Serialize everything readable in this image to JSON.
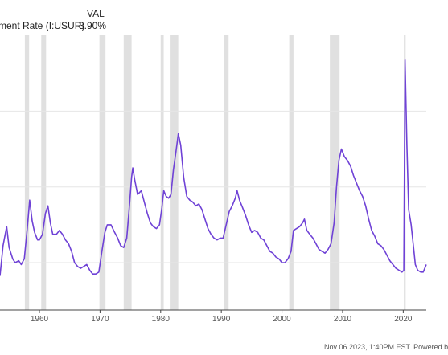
{
  "legend": {
    "val_header": "VAL",
    "series_label": "ment Rate (I:USUR)",
    "value": "3.90%"
  },
  "footer": {
    "text": "Nov 06 2023, 1:40PM EST. Powered b"
  },
  "colors": {
    "line": "#6f42d6",
    "recession": "#e0e0e0",
    "grid": "#e6e6e6",
    "axis": "#444444"
  },
  "chart_data": {
    "type": "line",
    "title": "",
    "xlabel": "",
    "ylabel": "",
    "x_ticks": [
      "1960",
      "1970",
      "1980",
      "1990",
      "2000",
      "2010",
      "2020"
    ],
    "xlim": [
      1953.5,
      2023.8
    ],
    "ylim": [
      1.5,
      16.0
    ],
    "grid": "horizontal",
    "recessions": [
      [
        1957.6,
        1958.3
      ],
      [
        1960.3,
        1961.1
      ],
      [
        1969.9,
        1970.9
      ],
      [
        1973.9,
        1975.2
      ],
      [
        1980.0,
        1980.5
      ],
      [
        1981.5,
        1982.9
      ],
      [
        1990.5,
        1991.2
      ],
      [
        2001.2,
        2001.9
      ],
      [
        2007.9,
        2009.5
      ],
      [
        2020.1,
        2020.4
      ]
    ],
    "series": [
      {
        "name": "",
        "points": [
          [
            1953.5,
            3.3
          ],
          [
            1954.0,
            4.9
          ],
          [
            1954.6,
            5.9
          ],
          [
            1955.0,
            4.8
          ],
          [
            1955.6,
            4.2
          ],
          [
            1956.0,
            4.0
          ],
          [
            1956.6,
            4.1
          ],
          [
            1957.0,
            3.9
          ],
          [
            1957.5,
            4.2
          ],
          [
            1958.0,
            5.8
          ],
          [
            1958.4,
            7.3
          ],
          [
            1958.8,
            6.2
          ],
          [
            1959.2,
            5.6
          ],
          [
            1959.7,
            5.2
          ],
          [
            1960.0,
            5.2
          ],
          [
            1960.5,
            5.5
          ],
          [
            1961.0,
            6.6
          ],
          [
            1961.4,
            7.0
          ],
          [
            1961.8,
            6.1
          ],
          [
            1962.2,
            5.5
          ],
          [
            1962.8,
            5.5
          ],
          [
            1963.3,
            5.7
          ],
          [
            1963.8,
            5.5
          ],
          [
            1964.3,
            5.2
          ],
          [
            1964.8,
            5.0
          ],
          [
            1965.3,
            4.6
          ],
          [
            1965.8,
            4.0
          ],
          [
            1966.3,
            3.8
          ],
          [
            1966.8,
            3.7
          ],
          [
            1967.3,
            3.8
          ],
          [
            1967.8,
            3.9
          ],
          [
            1968.3,
            3.6
          ],
          [
            1968.8,
            3.4
          ],
          [
            1969.3,
            3.4
          ],
          [
            1969.8,
            3.5
          ],
          [
            1970.3,
            4.6
          ],
          [
            1970.8,
            5.6
          ],
          [
            1971.2,
            6.0
          ],
          [
            1971.8,
            6.0
          ],
          [
            1972.4,
            5.6
          ],
          [
            1972.9,
            5.3
          ],
          [
            1973.4,
            4.9
          ],
          [
            1973.9,
            4.8
          ],
          [
            1974.4,
            5.3
          ],
          [
            1974.9,
            7.2
          ],
          [
            1975.2,
            8.5
          ],
          [
            1975.4,
            9.0
          ],
          [
            1975.7,
            8.4
          ],
          [
            1976.2,
            7.6
          ],
          [
            1976.8,
            7.8
          ],
          [
            1977.3,
            7.2
          ],
          [
            1977.8,
            6.6
          ],
          [
            1978.3,
            6.1
          ],
          [
            1978.8,
            5.9
          ],
          [
            1979.3,
            5.8
          ],
          [
            1979.8,
            6.0
          ],
          [
            1980.2,
            6.9
          ],
          [
            1980.5,
            7.8
          ],
          [
            1980.9,
            7.5
          ],
          [
            1981.3,
            7.4
          ],
          [
            1981.7,
            7.6
          ],
          [
            1982.1,
            8.9
          ],
          [
            1982.5,
            9.8
          ],
          [
            1982.9,
            10.8
          ],
          [
            1983.3,
            10.2
          ],
          [
            1983.8,
            8.5
          ],
          [
            1984.3,
            7.5
          ],
          [
            1984.8,
            7.3
          ],
          [
            1985.3,
            7.2
          ],
          [
            1985.8,
            7.0
          ],
          [
            1986.3,
            7.1
          ],
          [
            1986.8,
            6.8
          ],
          [
            1987.3,
            6.3
          ],
          [
            1987.8,
            5.8
          ],
          [
            1988.3,
            5.5
          ],
          [
            1988.8,
            5.3
          ],
          [
            1989.3,
            5.2
          ],
          [
            1989.8,
            5.3
          ],
          [
            1990.3,
            5.3
          ],
          [
            1990.8,
            6.0
          ],
          [
            1991.3,
            6.7
          ],
          [
            1991.8,
            7.0
          ],
          [
            1992.3,
            7.4
          ],
          [
            1992.6,
            7.8
          ],
          [
            1993.0,
            7.3
          ],
          [
            1993.5,
            6.9
          ],
          [
            1994.0,
            6.5
          ],
          [
            1994.5,
            6.0
          ],
          [
            1995.0,
            5.6
          ],
          [
            1995.5,
            5.7
          ],
          [
            1996.0,
            5.6
          ],
          [
            1996.5,
            5.3
          ],
          [
            1997.0,
            5.2
          ],
          [
            1997.5,
            4.9
          ],
          [
            1998.0,
            4.6
          ],
          [
            1998.5,
            4.5
          ],
          [
            1999.0,
            4.3
          ],
          [
            1999.5,
            4.2
          ],
          [
            2000.0,
            4.0
          ],
          [
            2000.5,
            4.0
          ],
          [
            2001.0,
            4.2
          ],
          [
            2001.5,
            4.6
          ],
          [
            2001.9,
            5.7
          ],
          [
            2002.4,
            5.8
          ],
          [
            2002.9,
            5.9
          ],
          [
            2003.4,
            6.1
          ],
          [
            2003.7,
            6.3
          ],
          [
            2004.1,
            5.7
          ],
          [
            2004.6,
            5.5
          ],
          [
            2005.1,
            5.3
          ],
          [
            2005.6,
            5.0
          ],
          [
            2006.1,
            4.7
          ],
          [
            2006.6,
            4.6
          ],
          [
            2007.1,
            4.5
          ],
          [
            2007.6,
            4.7
          ],
          [
            2008.1,
            5.0
          ],
          [
            2008.6,
            6.1
          ],
          [
            2009.0,
            8.0
          ],
          [
            2009.4,
            9.4
          ],
          [
            2009.8,
            10.0
          ],
          [
            2010.3,
            9.6
          ],
          [
            2010.8,
            9.4
          ],
          [
            2011.3,
            9.1
          ],
          [
            2011.8,
            8.6
          ],
          [
            2012.3,
            8.2
          ],
          [
            2012.8,
            7.8
          ],
          [
            2013.3,
            7.5
          ],
          [
            2013.8,
            7.0
          ],
          [
            2014.3,
            6.3
          ],
          [
            2014.8,
            5.7
          ],
          [
            2015.3,
            5.4
          ],
          [
            2015.8,
            5.0
          ],
          [
            2016.3,
            4.9
          ],
          [
            2016.8,
            4.7
          ],
          [
            2017.3,
            4.4
          ],
          [
            2017.8,
            4.1
          ],
          [
            2018.3,
            3.9
          ],
          [
            2018.8,
            3.7
          ],
          [
            2019.3,
            3.6
          ],
          [
            2019.8,
            3.5
          ],
          [
            2020.1,
            3.6
          ],
          [
            2020.3,
            14.7
          ],
          [
            2020.6,
            10.2
          ],
          [
            2020.9,
            6.8
          ],
          [
            2021.3,
            6.0
          ],
          [
            2021.7,
            4.8
          ],
          [
            2022.0,
            3.9
          ],
          [
            2022.4,
            3.6
          ],
          [
            2022.9,
            3.5
          ],
          [
            2023.3,
            3.5
          ],
          [
            2023.8,
            3.9
          ]
        ]
      }
    ]
  }
}
